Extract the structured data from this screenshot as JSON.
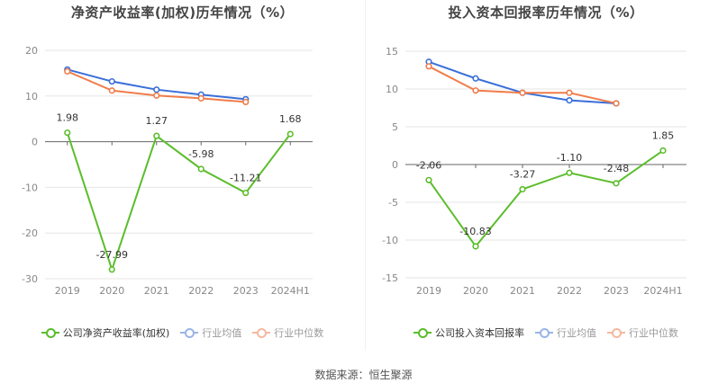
{
  "source_note": "数据来源：恒生聚源",
  "colors": {
    "company": "#5bbd2b",
    "industry_avg": "#3a6fd8",
    "industry_median": "#f07c4a",
    "industry_avg_legend": "#9ab4e8",
    "industry_median_legend": "#f4b9a0"
  },
  "chart_data": [
    {
      "type": "line",
      "title": "净资产收益率(加权)历年情况（%）",
      "categories": [
        "2019",
        "2020",
        "2021",
        "2022",
        "2023",
        "2024H1"
      ],
      "ylim": [
        -30,
        20
      ],
      "yticks": [
        20,
        10,
        0,
        -10,
        -20,
        -30
      ],
      "grid": true,
      "legend_position": "bottom",
      "series": [
        {
          "name": "公司净资产收益率(加权)",
          "key": "company",
          "values": [
            1.98,
            -27.99,
            1.27,
            -5.98,
            -11.21,
            1.68
          ],
          "labels": [
            "1.98",
            "-27.99",
            "1.27",
            "-5.98",
            "-11.21",
            "1.68"
          ]
        },
        {
          "name": "行业均值",
          "key": "industry_avg",
          "values": [
            15.8,
            13.2,
            11.4,
            10.3,
            9.3,
            null
          ]
        },
        {
          "name": "行业中位数",
          "key": "industry_median",
          "values": [
            15.4,
            11.2,
            10.1,
            9.5,
            8.7,
            null
          ]
        }
      ]
    },
    {
      "type": "line",
      "title": "投入资本回报率历年情况（%）",
      "categories": [
        "2019",
        "2020",
        "2021",
        "2022",
        "2023",
        "2024H1"
      ],
      "ylim": [
        -15,
        15
      ],
      "yticks": [
        15,
        10,
        5,
        0,
        -5,
        -10,
        -15
      ],
      "grid": true,
      "legend_position": "bottom",
      "series": [
        {
          "name": "公司投入资本回报率",
          "key": "company",
          "values": [
            -2.06,
            -10.83,
            -3.27,
            -1.1,
            -2.48,
            1.85
          ],
          "labels": [
            "-2.06",
            "-10.83",
            "-3.27",
            "-1.10",
            "-2.48",
            "1.85"
          ]
        },
        {
          "name": "行业均值",
          "key": "industry_avg",
          "values": [
            13.6,
            11.4,
            9.5,
            8.5,
            8.1,
            null
          ]
        },
        {
          "name": "行业中位数",
          "key": "industry_median",
          "values": [
            13.0,
            9.8,
            9.5,
            9.5,
            8.1,
            null
          ]
        }
      ]
    }
  ]
}
